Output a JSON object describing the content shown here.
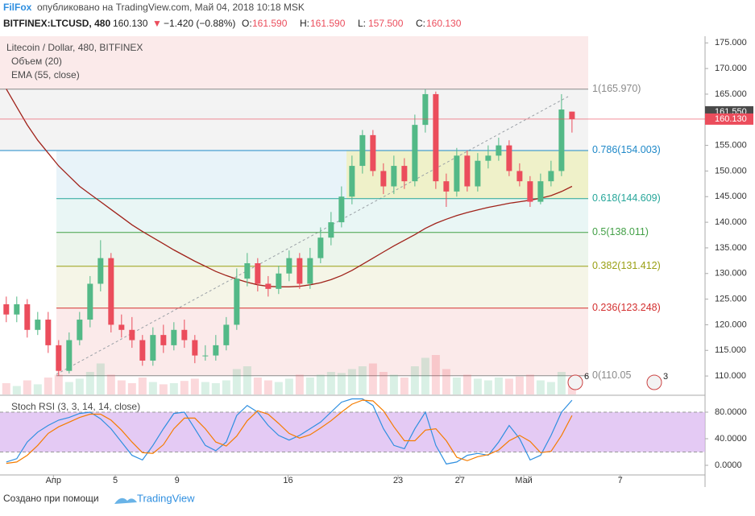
{
  "header": {
    "author": "FilFox",
    "published": "опубликовано на TradingView.com, Май 04, 2018 10:18 MSK",
    "symbol": "BITFINEX:LTCUSD, 480",
    "last": "160.130",
    "arrow": "▼",
    "change": "−1.420 (−0.88%)",
    "ohlc": [
      {
        "key": "O:",
        "value": "161.590"
      },
      {
        "key": "H:",
        "value": "161.590"
      },
      {
        "key": "L:",
        "value": "157.500"
      },
      {
        "key": "C:",
        "value": "160.130"
      }
    ]
  },
  "chart_data": {
    "type": "candlestick",
    "title": "Litecoin / Dollar, 480, BITFINEX",
    "indicators": [
      "Объем (20)",
      "EMA (55, close)"
    ],
    "up_color": "#53b987",
    "down_color": "#eb4d5c",
    "xlim": [
      -0.6,
      66.7
    ],
    "xticks": [
      {
        "value": 4.5,
        "label": "Апр"
      },
      {
        "value": 10.4,
        "label": "5"
      },
      {
        "value": 16.3,
        "label": "9"
      },
      {
        "value": 26.9,
        "label": "16"
      },
      {
        "value": 37.4,
        "label": "23"
      },
      {
        "value": 43.3,
        "label": "27"
      },
      {
        "value": 49.4,
        "label": "Май"
      },
      {
        "value": 58.6,
        "label": "7"
      }
    ],
    "ylim": [
      106.4,
      176.3
    ],
    "yticks": [
      {
        "value": 110,
        "label": "110.000"
      },
      {
        "value": 115,
        "label": "115.000"
      },
      {
        "value": 120,
        "label": "120.000"
      },
      {
        "value": 125,
        "label": "125.000"
      },
      {
        "value": 130,
        "label": "130.000"
      },
      {
        "value": 135,
        "label": "135.000"
      },
      {
        "value": 140,
        "label": "140.000"
      },
      {
        "value": 145,
        "label": "145.000"
      },
      {
        "value": 150,
        "label": "150.000"
      },
      {
        "value": 155,
        "label": "155.000"
      },
      {
        "value": 160,
        "label": "160.000"
      },
      {
        "value": 165,
        "label": "165.000"
      },
      {
        "value": 170,
        "label": "170.000"
      },
      {
        "value": 175,
        "label": "175.000"
      }
    ],
    "open": [
      124,
      122,
      124,
      119,
      121,
      116,
      111,
      117,
      121,
      128,
      133,
      120,
      119,
      117,
      113,
      118,
      116,
      119,
      117,
      114,
      114,
      116,
      120,
      129,
      132,
      128,
      127,
      130,
      133,
      128,
      133,
      137,
      140,
      145,
      151,
      157,
      150,
      147,
      151,
      148,
      159,
      165,
      148,
      146,
      153,
      147,
      152,
      153,
      155,
      150,
      148,
      144,
      148,
      150,
      161.59
    ],
    "high": [
      125.5,
      125.5,
      125,
      122.5,
      122.5,
      117,
      118.5,
      122.5,
      129.5,
      136.5,
      134,
      122,
      121.5,
      118,
      119.5,
      120,
      120.5,
      121,
      118,
      116,
      118,
      121.5,
      131,
      134,
      133,
      129.5,
      131.5,
      134.5,
      134,
      135,
      139,
      142,
      147,
      153,
      158,
      158,
      151.5,
      153,
      152.5,
      161,
      165.97,
      165.5,
      149.5,
      154.5,
      154,
      153.5,
      155,
      156.5,
      156,
      151.5,
      149,
      149.5,
      152,
      165,
      161.59
    ],
    "low": [
      120.5,
      120.5,
      117.5,
      118,
      114.5,
      110.05,
      110.5,
      116,
      119.5,
      126.5,
      118.5,
      117.5,
      115.5,
      112,
      112,
      114.5,
      115,
      115.5,
      112.5,
      113,
      113,
      115,
      119,
      127.5,
      126.5,
      125.5,
      126,
      128.5,
      127,
      127,
      132,
      135.5,
      139,
      143.5,
      149.5,
      149,
      145.5,
      145.5,
      146.5,
      147,
      157.5,
      146.5,
      143,
      145,
      146,
      146,
      150.5,
      152,
      149,
      147,
      143,
      143.5,
      147,
      149,
      157.5
    ],
    "close": [
      122,
      124,
      119,
      121,
      116,
      111,
      117,
      121,
      128,
      133,
      120,
      119,
      117,
      113,
      118,
      116,
      119,
      117,
      114,
      114,
      116,
      120,
      129,
      132,
      128,
      127,
      130,
      133,
      128,
      133,
      137,
      140,
      145,
      151,
      157,
      150,
      147,
      151,
      148,
      159,
      165,
      148,
      146,
      153,
      147,
      152,
      153,
      155,
      150,
      148,
      144,
      148,
      150,
      162,
      160.13
    ],
    "volume": [
      20,
      15,
      25,
      18,
      30,
      35,
      22,
      28,
      40,
      55,
      35,
      25,
      20,
      30,
      22,
      18,
      20,
      24,
      28,
      22,
      20,
      25,
      45,
      50,
      30,
      25,
      22,
      28,
      35,
      30,
      35,
      40,
      38,
      45,
      50,
      55,
      40,
      35,
      30,
      50,
      65,
      70,
      45,
      30,
      35,
      28,
      25,
      30,
      28,
      32,
      35,
      25,
      22,
      40,
      30
    ],
    "ema": {
      "color": "#a0221a",
      "values": [
        166,
        162.5,
        159,
        156,
        153.5,
        151,
        149,
        147,
        145.5,
        144,
        142.5,
        141,
        139.5,
        138.2,
        137,
        135.8,
        134.6,
        133.5,
        132.4,
        131.4,
        130.4,
        129.6,
        128.9,
        128.3,
        127.8,
        127.5,
        127.4,
        127.4,
        127.5,
        127.8,
        128.2,
        128.8,
        129.6,
        130.6,
        131.8,
        133,
        134.2,
        135.4,
        136.5,
        137.6,
        138.8,
        139.8,
        140.6,
        141.3,
        141.9,
        142.4,
        142.9,
        143.3,
        143.7,
        144,
        144.3,
        144.7,
        145.2,
        146,
        147
      ]
    },
    "fib_levels": [
      {
        "value": 165.97,
        "label": "1(165.970)",
        "color": "#8a8a8a"
      },
      {
        "value": 154.003,
        "label": "0.786(154.003)",
        "color": "#1e88c8"
      },
      {
        "value": 144.609,
        "label": "0.618(144.609)",
        "color": "#26a69a"
      },
      {
        "value": 138.011,
        "label": "0.5(138.011)",
        "color": "#43a047"
      },
      {
        "value": 131.412,
        "label": "0.382(131.412)",
        "color": "#9aa014"
      },
      {
        "value": 123.248,
        "label": "0.236(123.248)",
        "color": "#d32f2f"
      },
      {
        "value": 110.05,
        "label": "0(110.05",
        "color": "#8a8a8a"
      }
    ],
    "price_labels": [
      {
        "value": 161.55,
        "label": "161.550",
        "color": "#4a4a4a"
      },
      {
        "value": 160.13,
        "label": "160.130",
        "color": "#eb4d5c"
      }
    ],
    "markers": [
      "6",
      "3"
    ],
    "stoch": {
      "title": "Stoch RSI (3, 3, 14, 14, close)",
      "ylim": [
        -14.5,
        101.8
      ],
      "yticks": [
        {
          "value": 0,
          "label": "0.0000"
        },
        {
          "value": 40,
          "label": "40.0000"
        },
        {
          "value": 80,
          "label": "80.0000"
        }
      ],
      "band": [
        20,
        80
      ],
      "series": [
        {
          "color": "#2f8fe0",
          "values": [
            5,
            10,
            35,
            50,
            60,
            68,
            72,
            78,
            80,
            70,
            55,
            35,
            15,
            8,
            30,
            55,
            78,
            80,
            55,
            30,
            22,
            35,
            75,
            90,
            80,
            60,
            45,
            38,
            45,
            55,
            65,
            80,
            95,
            100,
            100,
            90,
            55,
            30,
            25,
            55,
            80,
            30,
            2,
            5,
            15,
            18,
            15,
            35,
            60,
            40,
            8,
            15,
            45,
            80,
            98
          ]
        },
        {
          "color": "#f57c00",
          "values": [
            3,
            5,
            15,
            30,
            48,
            58,
            65,
            72,
            77,
            77,
            68,
            53,
            35,
            19,
            18,
            31,
            55,
            71,
            71,
            55,
            35,
            29,
            44,
            67,
            82,
            77,
            63,
            48,
            41,
            46,
            56,
            67,
            80,
            92,
            98,
            97,
            82,
            58,
            37,
            37,
            53,
            55,
            37,
            12,
            7,
            13,
            16,
            23,
            37,
            45,
            36,
            19,
            21,
            45,
            75
          ]
        }
      ]
    }
  },
  "footer": {
    "text": "Создано при помощи",
    "brand": "TradingView"
  }
}
